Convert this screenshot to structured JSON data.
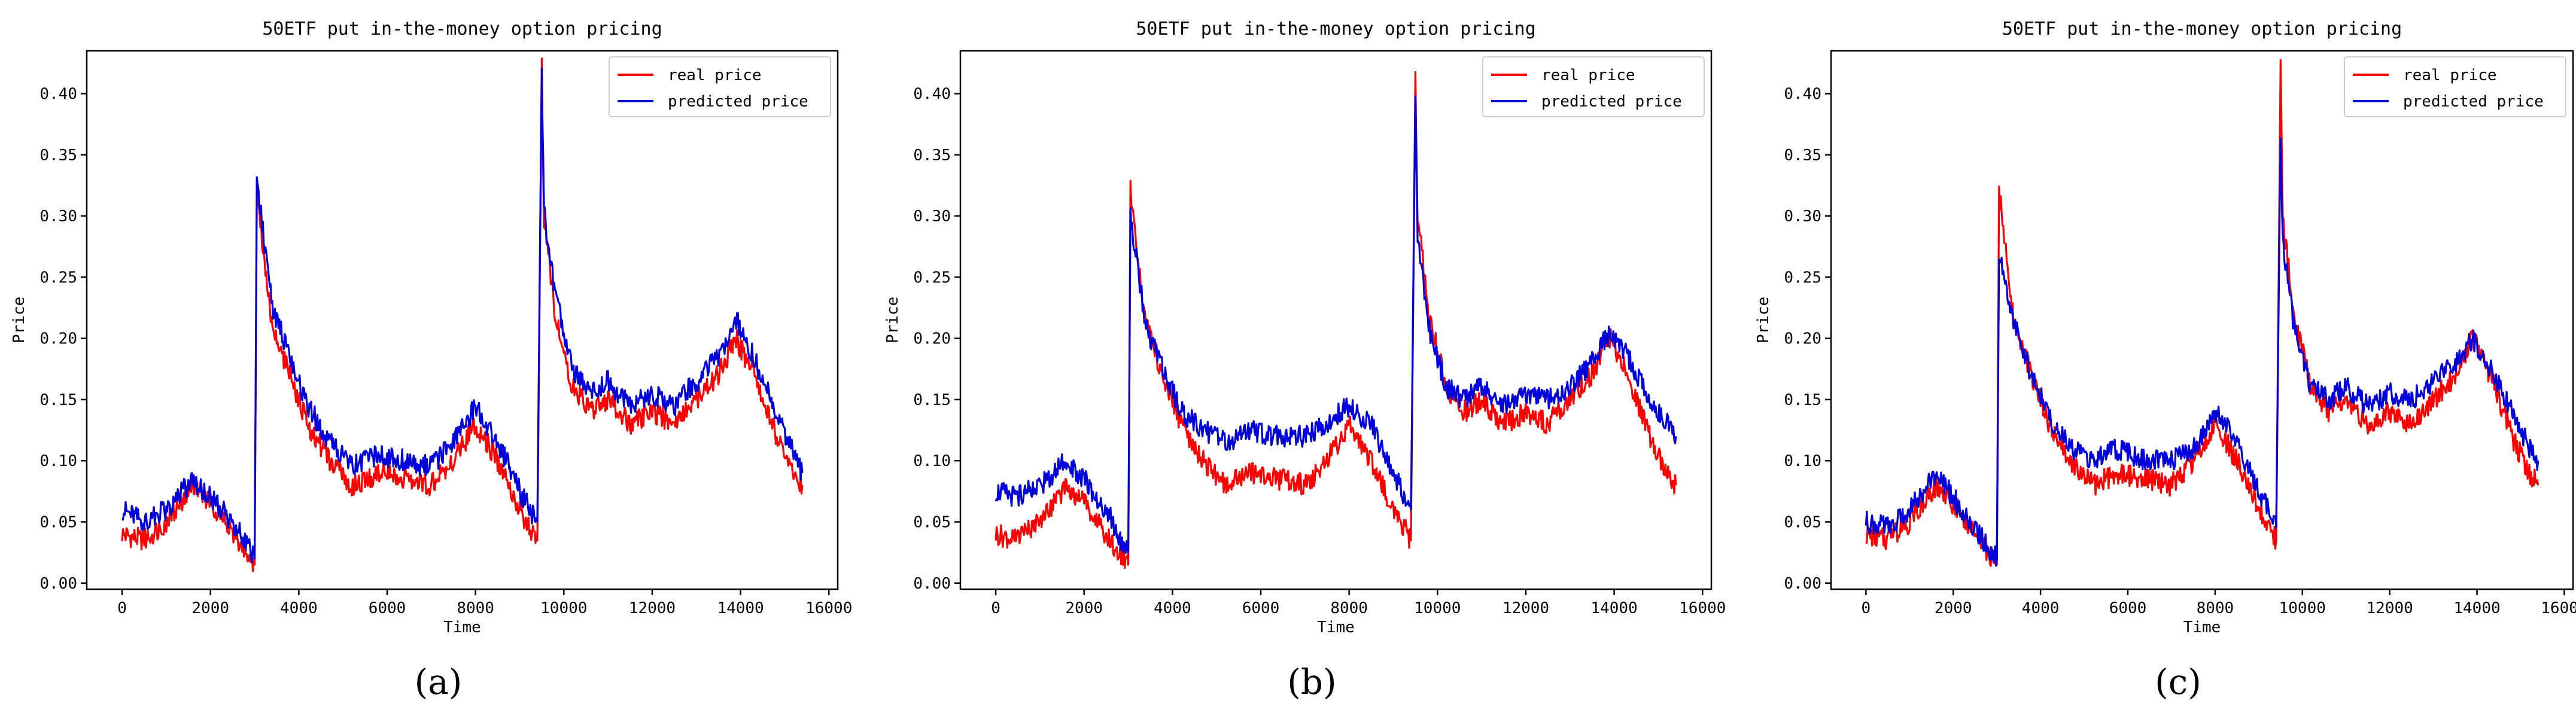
{
  "chart_data": [
    {
      "type": "line",
      "panel": "(a)",
      "title": "50ETF put in-the-money option pricing",
      "xlabel": "Time",
      "ylabel": "Price",
      "xlim": [
        -800,
        16200
      ],
      "ylim": [
        -0.005,
        0.435
      ],
      "xticks": [
        0,
        2000,
        4000,
        6000,
        8000,
        10000,
        12000,
        14000,
        16000
      ],
      "yticks": [
        0.0,
        0.05,
        0.1,
        0.15,
        0.2,
        0.25,
        0.3,
        0.35,
        0.4
      ],
      "legend_position": "top-right",
      "series": [
        {
          "name": "real price",
          "color": "#ff0000",
          "x": [
            0,
            500,
            1000,
            1600,
            2000,
            2500,
            3000,
            3050,
            3400,
            3800,
            4200,
            4700,
            5200,
            5800,
            6400,
            7000,
            7500,
            8000,
            8500,
            9000,
            9400,
            9500,
            9550,
            9800,
            10200,
            10600,
            11000,
            11500,
            12000,
            12500,
            13000,
            13500,
            13900,
            14300,
            14800,
            15200,
            15400
          ],
          "y": [
            0.04,
            0.035,
            0.05,
            0.08,
            0.065,
            0.04,
            0.015,
            0.32,
            0.21,
            0.17,
            0.13,
            0.1,
            0.08,
            0.09,
            0.085,
            0.08,
            0.1,
            0.13,
            0.1,
            0.06,
            0.035,
            0.42,
            0.3,
            0.22,
            0.16,
            0.14,
            0.15,
            0.13,
            0.14,
            0.13,
            0.15,
            0.17,
            0.2,
            0.17,
            0.12,
            0.09,
            0.08
          ]
        },
        {
          "name": "predicted price",
          "color": "#0000dd",
          "x": [
            0,
            500,
            1000,
            1600,
            2000,
            2500,
            3000,
            3050,
            3400,
            3800,
            4200,
            4700,
            5200,
            5800,
            6400,
            7000,
            7500,
            8000,
            8500,
            9000,
            9400,
            9500,
            9550,
            9800,
            10200,
            10600,
            11000,
            11500,
            12000,
            12500,
            13000,
            13500,
            13900,
            14300,
            14800,
            15200,
            15400
          ],
          "y": [
            0.06,
            0.05,
            0.06,
            0.085,
            0.07,
            0.05,
            0.02,
            0.33,
            0.225,
            0.185,
            0.145,
            0.115,
            0.095,
            0.105,
            0.1,
            0.095,
            0.115,
            0.145,
            0.115,
            0.075,
            0.05,
            0.42,
            0.305,
            0.235,
            0.175,
            0.155,
            0.165,
            0.145,
            0.155,
            0.145,
            0.165,
            0.185,
            0.215,
            0.185,
            0.14,
            0.105,
            0.09
          ]
        }
      ]
    },
    {
      "type": "line",
      "panel": "(b)",
      "title": "50ETF put in-the-money option pricing",
      "xlabel": "Time",
      "ylabel": "Price",
      "xlim": [
        -800,
        16200
      ],
      "ylim": [
        -0.005,
        0.435
      ],
      "xticks": [
        0,
        2000,
        4000,
        6000,
        8000,
        10000,
        12000,
        14000,
        16000
      ],
      "yticks": [
        0.0,
        0.05,
        0.1,
        0.15,
        0.2,
        0.25,
        0.3,
        0.35,
        0.4
      ],
      "legend_position": "top-right",
      "series": [
        {
          "name": "real price",
          "color": "#ff0000",
          "x": [
            0,
            500,
            1000,
            1600,
            2000,
            2500,
            3000,
            3050,
            3400,
            3800,
            4200,
            4700,
            5200,
            5800,
            6400,
            7000,
            7500,
            8000,
            8500,
            9000,
            9400,
            9500,
            9550,
            9800,
            10200,
            10600,
            11000,
            11500,
            12000,
            12500,
            13000,
            13500,
            13900,
            14300,
            14800,
            15200,
            15400
          ],
          "y": [
            0.04,
            0.035,
            0.05,
            0.08,
            0.065,
            0.04,
            0.015,
            0.32,
            0.21,
            0.17,
            0.13,
            0.1,
            0.08,
            0.09,
            0.085,
            0.08,
            0.1,
            0.13,
            0.1,
            0.06,
            0.035,
            0.42,
            0.3,
            0.22,
            0.16,
            0.14,
            0.15,
            0.13,
            0.14,
            0.13,
            0.15,
            0.17,
            0.2,
            0.17,
            0.12,
            0.09,
            0.08
          ]
        },
        {
          "name": "predicted price",
          "color": "#0000dd",
          "x": [
            0,
            500,
            1000,
            1600,
            2000,
            2500,
            3000,
            3050,
            3400,
            3800,
            4200,
            4700,
            5200,
            5800,
            6400,
            7000,
            7500,
            8000,
            8500,
            9000,
            9400,
            9500,
            9550,
            9800,
            10200,
            10600,
            11000,
            11500,
            12000,
            12500,
            13000,
            13500,
            13900,
            14300,
            14800,
            15200,
            15400
          ],
          "y": [
            0.075,
            0.07,
            0.08,
            0.1,
            0.085,
            0.06,
            0.025,
            0.3,
            0.21,
            0.175,
            0.14,
            0.125,
            0.115,
            0.125,
            0.12,
            0.12,
            0.13,
            0.145,
            0.13,
            0.09,
            0.06,
            0.4,
            0.28,
            0.21,
            0.16,
            0.15,
            0.16,
            0.145,
            0.155,
            0.15,
            0.16,
            0.18,
            0.205,
            0.185,
            0.15,
            0.13,
            0.12
          ]
        }
      ]
    },
    {
      "type": "line",
      "panel": "(c)",
      "title": "50ETF put in-the-money option pricing",
      "xlabel": "Time",
      "ylabel": "Price",
      "xlim": [
        -800,
        16200
      ],
      "ylim": [
        -0.005,
        0.435
      ],
      "xticks": [
        0,
        2000,
        4000,
        6000,
        8000,
        10000,
        12000,
        14000,
        16000
      ],
      "yticks": [
        0.0,
        0.05,
        0.1,
        0.15,
        0.2,
        0.25,
        0.3,
        0.35,
        0.4
      ],
      "legend_position": "top-right",
      "series": [
        {
          "name": "real price",
          "color": "#ff0000",
          "x": [
            0,
            500,
            1000,
            1600,
            2000,
            2500,
            3000,
            3050,
            3400,
            3800,
            4200,
            4700,
            5200,
            5800,
            6400,
            7000,
            7500,
            8000,
            8500,
            9000,
            9400,
            9500,
            9550,
            9800,
            10200,
            10600,
            11000,
            11500,
            12000,
            12500,
            13000,
            13500,
            13900,
            14300,
            14800,
            15200,
            15400
          ],
          "y": [
            0.04,
            0.035,
            0.05,
            0.08,
            0.065,
            0.04,
            0.015,
            0.32,
            0.21,
            0.17,
            0.13,
            0.1,
            0.08,
            0.09,
            0.085,
            0.08,
            0.1,
            0.13,
            0.1,
            0.06,
            0.035,
            0.42,
            0.3,
            0.22,
            0.16,
            0.14,
            0.15,
            0.13,
            0.14,
            0.13,
            0.15,
            0.17,
            0.2,
            0.17,
            0.12,
            0.09,
            0.08
          ]
        },
        {
          "name": "predicted price",
          "color": "#0000dd",
          "x": [
            0,
            500,
            1000,
            1600,
            2000,
            2500,
            3000,
            3050,
            3400,
            3800,
            4200,
            4700,
            5200,
            5800,
            6400,
            7000,
            7500,
            8000,
            8500,
            9000,
            9400,
            9500,
            9550,
            9800,
            10200,
            10600,
            11000,
            11500,
            12000,
            12500,
            13000,
            13500,
            13900,
            14300,
            14800,
            15200,
            15400
          ],
          "y": [
            0.05,
            0.045,
            0.06,
            0.09,
            0.07,
            0.045,
            0.02,
            0.27,
            0.21,
            0.17,
            0.135,
            0.11,
            0.1,
            0.11,
            0.1,
            0.1,
            0.11,
            0.14,
            0.115,
            0.075,
            0.045,
            0.37,
            0.28,
            0.21,
            0.16,
            0.15,
            0.16,
            0.145,
            0.155,
            0.15,
            0.165,
            0.18,
            0.2,
            0.175,
            0.14,
            0.11,
            0.1
          ]
        }
      ]
    }
  ]
}
